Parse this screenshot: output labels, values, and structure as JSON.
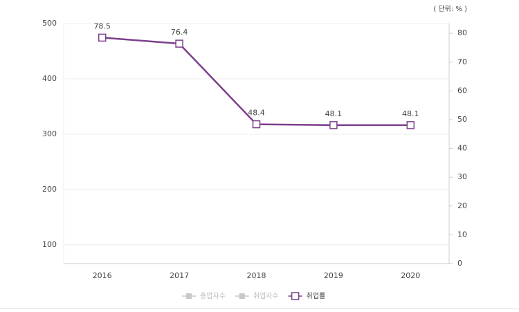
{
  "chart_data": {
    "type": "line",
    "unit_label": "( 단위: % )",
    "categories": [
      "2016",
      "2017",
      "2018",
      "2019",
      "2020"
    ],
    "series": [
      {
        "name": "종업자수",
        "color": "#c8c8c8",
        "values": [
          null,
          null,
          null,
          null,
          null
        ]
      },
      {
        "name": "취업자수",
        "color": "#c8c8c8",
        "values": [
          null,
          null,
          null,
          null,
          null
        ]
      },
      {
        "name": "취업률",
        "color": "#7b3f8c",
        "axis": "y2",
        "values": [
          78.5,
          76.4,
          48.4,
          48.1,
          48.1
        ]
      }
    ],
    "ylim": [
      66,
      500
    ],
    "yticks": [
      100,
      200,
      300,
      400,
      500
    ],
    "y2lim": [
      0,
      83.4
    ],
    "y2ticks": [
      0,
      10,
      20,
      30,
      40,
      50,
      60,
      70,
      80
    ],
    "grid": true
  }
}
